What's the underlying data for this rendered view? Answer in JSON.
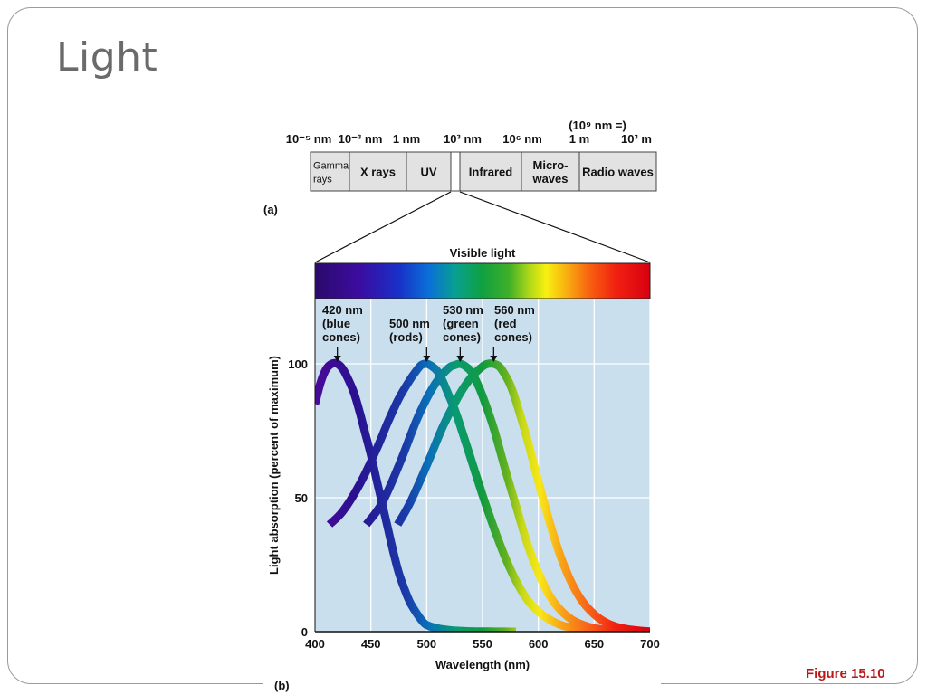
{
  "slide": {
    "title": "Light",
    "figure_label": "Figure 15.10"
  },
  "spectrum_diagram": {
    "panel_label": "(a)",
    "scale_labels": {
      "top_note": "(10⁹ nm =)",
      "ticks": [
        "10⁻⁵ nm",
        "10⁻³ nm",
        "1 nm",
        "10³ nm",
        "10⁶ nm",
        "1 m",
        "10³ m"
      ]
    },
    "bands": [
      {
        "label_lines": [
          "Gamma",
          "rays"
        ]
      },
      {
        "label_lines": [
          "X rays"
        ]
      },
      {
        "label_lines": [
          "UV"
        ]
      },
      {
        "label_lines": [
          ""
        ]
      },
      {
        "label_lines": [
          "Infrared"
        ]
      },
      {
        "label_lines": [
          "Micro-",
          "waves"
        ]
      },
      {
        "label_lines": [
          "Radio waves"
        ]
      }
    ]
  },
  "chart_data": {
    "type": "line",
    "panel_label": "(b)",
    "spectrum_bar_label": "Visible light",
    "xlabel": "Wavelength (nm)",
    "ylabel": "Light absorption (percent of maximum)",
    "xlim": [
      400,
      700
    ],
    "ylim": [
      0,
      100
    ],
    "x_ticks": [
      400,
      450,
      500,
      550,
      600,
      650,
      700
    ],
    "y_ticks": [
      0,
      50,
      100
    ],
    "grid": true,
    "series": [
      {
        "name": "",
        "peak": 420,
        "annotation": [
          "420 nm",
          "(blue",
          "cones)"
        ],
        "x": [
          400,
          405,
          410,
          415,
          420,
          425,
          430,
          435,
          440,
          445,
          450,
          455,
          460,
          465,
          470,
          475,
          480,
          485,
          490,
          495,
          500,
          510,
          520,
          530,
          540,
          550,
          560,
          570,
          580
        ],
        "y": [
          85,
          93,
          98,
          100,
          100,
          98,
          94,
          89,
          82,
          74,
          66,
          57,
          48,
          39,
          30,
          22,
          16,
          11,
          7.5,
          4.5,
          2.5,
          1.2,
          0.6,
          0.3,
          0.15,
          0.1,
          0.05,
          0.02,
          0
        ]
      },
      {
        "name": "",
        "peak": 500,
        "annotation": [
          "500 nm",
          "(rods)"
        ],
        "x": [
          413,
          425,
          440,
          455,
          465,
          475,
          485,
          490,
          495,
          500,
          505,
          510,
          515,
          520,
          525,
          530,
          540,
          550,
          560,
          570,
          580,
          590,
          600,
          610,
          620,
          630,
          640,
          650,
          660,
          670,
          680
        ],
        "y": [
          40,
          45,
          55,
          68,
          78,
          87,
          94,
          97,
          99.5,
          100,
          99,
          97,
          93,
          88,
          83,
          77,
          64,
          51,
          39,
          28,
          19,
          12,
          7.5,
          4.5,
          2.5,
          1.5,
          0.9,
          0.5,
          0.3,
          0.15,
          0.05
        ]
      },
      {
        "name": "",
        "peak": 530,
        "annotation": [
          "530 nm",
          "(green",
          "cones)"
        ],
        "x": [
          446,
          460,
          475,
          490,
          500,
          510,
          520,
          525,
          530,
          535,
          540,
          545,
          550,
          560,
          570,
          580,
          590,
          600,
          610,
          620,
          630,
          640,
          650,
          660,
          670,
          680,
          690
        ],
        "y": [
          40,
          48,
          62,
          78,
          87,
          94,
          98.5,
          99.5,
          100,
          99,
          97,
          93,
          88,
          76,
          61,
          47,
          33,
          22,
          13.5,
          8,
          4.5,
          2.5,
          1.3,
          0.7,
          0.3,
          0.15,
          0.05
        ]
      },
      {
        "name": "",
        "peak": 560,
        "annotation": [
          "560 nm",
          "(red",
          "cones)"
        ],
        "x": [
          474,
          485,
          500,
          515,
          530,
          540,
          550,
          555,
          560,
          565,
          570,
          575,
          580,
          590,
          600,
          610,
          620,
          630,
          640,
          650,
          660,
          670,
          680,
          690,
          700
        ],
        "y": [
          40,
          48,
          62,
          77,
          89,
          95,
          99,
          100,
          100,
          99,
          96,
          92,
          86,
          72,
          56,
          41,
          28,
          18,
          11,
          6.5,
          3.5,
          1.8,
          0.9,
          0.4,
          0.1
        ]
      }
    ]
  }
}
